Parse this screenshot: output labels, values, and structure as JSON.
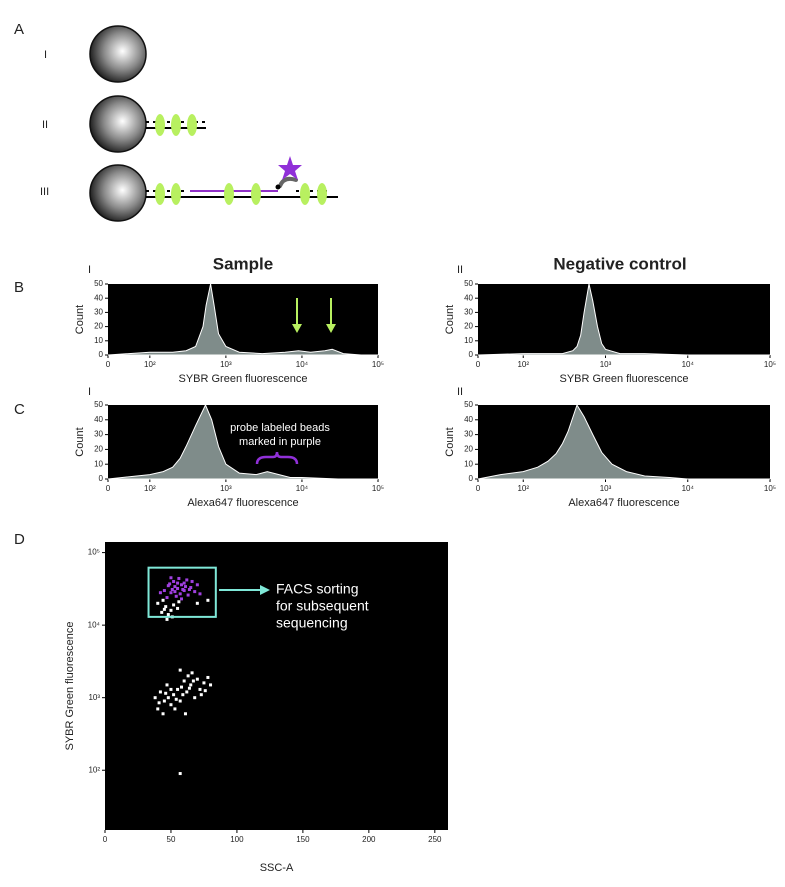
{
  "panel_labels": [
    "A",
    "B",
    "C",
    "D"
  ],
  "diagram": {
    "rows": [
      "I",
      "II",
      "III"
    ]
  },
  "headings": [
    "Sample",
    "Negative control"
  ],
  "sub_labels": [
    "I",
    "II",
    "I",
    "II"
  ],
  "chart_data": [
    {
      "type": "area",
      "color": "#7f8c8a",
      "xscale": "biexponential",
      "x": [
        0,
        100,
        200,
        300,
        400,
        500,
        550,
        630,
        700,
        800,
        1000,
        1500,
        3000,
        6000,
        9000,
        13000,
        20000,
        25000,
        35000,
        60000,
        100000
      ],
      "values": [
        0,
        2,
        2,
        3,
        6,
        20,
        35,
        50,
        35,
        15,
        6,
        2,
        1,
        2,
        3,
        2,
        3,
        4,
        1,
        0,
        0
      ],
      "xlim": [
        0,
        100000
      ],
      "xticks": [
        0,
        {
          "value": 100,
          "label": "10²"
        },
        {
          "value": 1000,
          "label": "10³"
        },
        {
          "value": 10000,
          "label": "10⁴"
        },
        {
          "value": 100000,
          "label": "10⁵"
        }
      ],
      "ylim": [
        0,
        50
      ],
      "yticks": [
        0,
        10,
        20,
        30,
        40,
        50
      ],
      "x_label": "SYBR Green fluorescence",
      "y_label": "Count"
    },
    {
      "type": "area",
      "color": "#7f8c8a",
      "xscale": "biexponential",
      "x": [
        0,
        100,
        200,
        300,
        400,
        450,
        500,
        550,
        630,
        700,
        800,
        900,
        1000,
        1500,
        3000,
        10000,
        100000
      ],
      "values": [
        0,
        1,
        1,
        1,
        3,
        6,
        14,
        30,
        50,
        38,
        20,
        8,
        4,
        1,
        1,
        0,
        0
      ],
      "xlim": [
        0,
        100000
      ],
      "xticks": [
        0,
        {
          "value": 100,
          "label": "10²"
        },
        {
          "value": 1000,
          "label": "10³"
        },
        {
          "value": 10000,
          "label": "10⁴"
        },
        {
          "value": 100000,
          "label": "10⁵"
        }
      ],
      "ylim": [
        0,
        50
      ],
      "yticks": [
        0,
        10,
        20,
        30,
        40,
        50
      ],
      "x_label": "SYBR Green fluorescence",
      "y_label": "Count"
    },
    {
      "type": "area",
      "color": "#7f8c8a",
      "xscale": "biexponential",
      "x": [
        0,
        100,
        150,
        200,
        250,
        300,
        400,
        540,
        650,
        800,
        1000,
        1500,
        2500,
        3500,
        5000,
        7000,
        10000,
        30000,
        100000
      ],
      "values": [
        0,
        3,
        5,
        8,
        14,
        22,
        36,
        50,
        40,
        22,
        10,
        4,
        3,
        5,
        3,
        1,
        1,
        0,
        0
      ],
      "xlim": [
        0,
        100000
      ],
      "xticks": [
        0,
        {
          "value": 100,
          "label": "10²"
        },
        {
          "value": 1000,
          "label": "10³"
        },
        {
          "value": 10000,
          "label": "10⁴"
        },
        {
          "value": 100000,
          "label": "10⁵"
        }
      ],
      "ylim": [
        0,
        50
      ],
      "yticks": [
        0,
        10,
        20,
        30,
        40,
        50
      ],
      "x_label": "Alexa647 fluorescence",
      "y_label": "Count",
      "annotation": [
        "probe labeled beads",
        "marked in purple"
      ]
    },
    {
      "type": "area",
      "color": "#7f8c8a",
      "xscale": "biexponential",
      "x": [
        0,
        50,
        100,
        150,
        200,
        250,
        300,
        350,
        450,
        550,
        700,
        900,
        1200,
        1800,
        3000,
        6000,
        10000,
        100000
      ],
      "values": [
        0,
        3,
        5,
        8,
        12,
        17,
        24,
        32,
        50,
        42,
        30,
        18,
        10,
        5,
        2,
        1,
        0,
        0
      ],
      "xlim": [
        0,
        100000
      ],
      "xticks": [
        0,
        {
          "value": 100,
          "label": "10²"
        },
        {
          "value": 1000,
          "label": "10³"
        },
        {
          "value": 10000,
          "label": "10⁴"
        },
        {
          "value": 100000,
          "label": "10⁵"
        }
      ],
      "ylim": [
        0,
        50
      ],
      "yticks": [
        0,
        10,
        20,
        30,
        40,
        50
      ],
      "x_label": "Alexa647 fluorescence",
      "y_label": "Count"
    },
    {
      "type": "scatter",
      "yscale": "log",
      "series": [
        {
          "color": "#a040e0",
          "x": [
            45,
            48,
            50,
            52,
            55,
            58,
            60,
            62,
            50,
            54,
            57,
            60,
            65,
            68,
            47,
            53,
            56,
            59,
            63,
            70,
            42,
            51,
            55,
            58,
            61,
            66,
            49,
            53,
            64,
            72
          ],
          "values": [
            30000,
            35000,
            28000,
            40000,
            32000,
            36000,
            30000,
            42000,
            45000,
            25000,
            27000,
            38000,
            33000,
            29000,
            24000,
            34000,
            44000,
            31000,
            26000,
            36000,
            28000,
            31000,
            38000,
            23000,
            34000,
            40000,
            37000,
            29000,
            31000,
            27000
          ]
        },
        {
          "color": "#ffffff",
          "x": [
            40,
            44,
            46,
            50,
            48,
            52,
            55,
            43,
            47,
            51,
            56,
            45,
            78,
            70,
            38,
            40,
            42,
            45,
            47,
            50,
            52,
            55,
            57,
            60,
            62,
            65,
            68,
            70,
            72,
            75,
            78,
            44,
            48,
            53,
            58,
            63,
            66,
            73,
            41,
            46,
            50,
            54,
            59,
            64,
            67,
            76,
            80,
            57,
            61,
            57
          ],
          "values": [
            20000,
            22000,
            18000,
            16000,
            14000,
            19000,
            17000,
            15000,
            12000,
            13000,
            21000,
            16500,
            22000,
            20000,
            1000,
            700,
            1200,
            900,
            1500,
            800,
            1100,
            1300,
            900,
            1700,
            1200,
            1500,
            1000,
            1800,
            1300,
            1600,
            1900,
            600,
            1000,
            700,
            1400,
            2000,
            2200,
            1100,
            850,
            1150,
            1300,
            950,
            1100,
            1350,
            1700,
            1250,
            1500,
            2400,
            600,
            90
          ]
        }
      ],
      "xlim": [
        0,
        260
      ],
      "xticks": [
        0,
        50,
        100,
        150,
        200,
        250
      ],
      "ylim": [
        15,
        140000
      ],
      "yticks": [
        {
          "value": 100,
          "label": "10²"
        },
        {
          "value": 1000,
          "label": "10³"
        },
        {
          "value": 10000,
          "label": "10⁴"
        },
        {
          "value": 100000,
          "label": "10⁵"
        }
      ],
      "x_label": "SSC-A",
      "y_label": "SYBR Green fluorescence",
      "gate": {
        "x": [
          33,
          84
        ],
        "y": [
          13000,
          62000
        ]
      },
      "annotation": [
        "FACS sorting",
        "for subsequent",
        "sequencing"
      ]
    }
  ]
}
